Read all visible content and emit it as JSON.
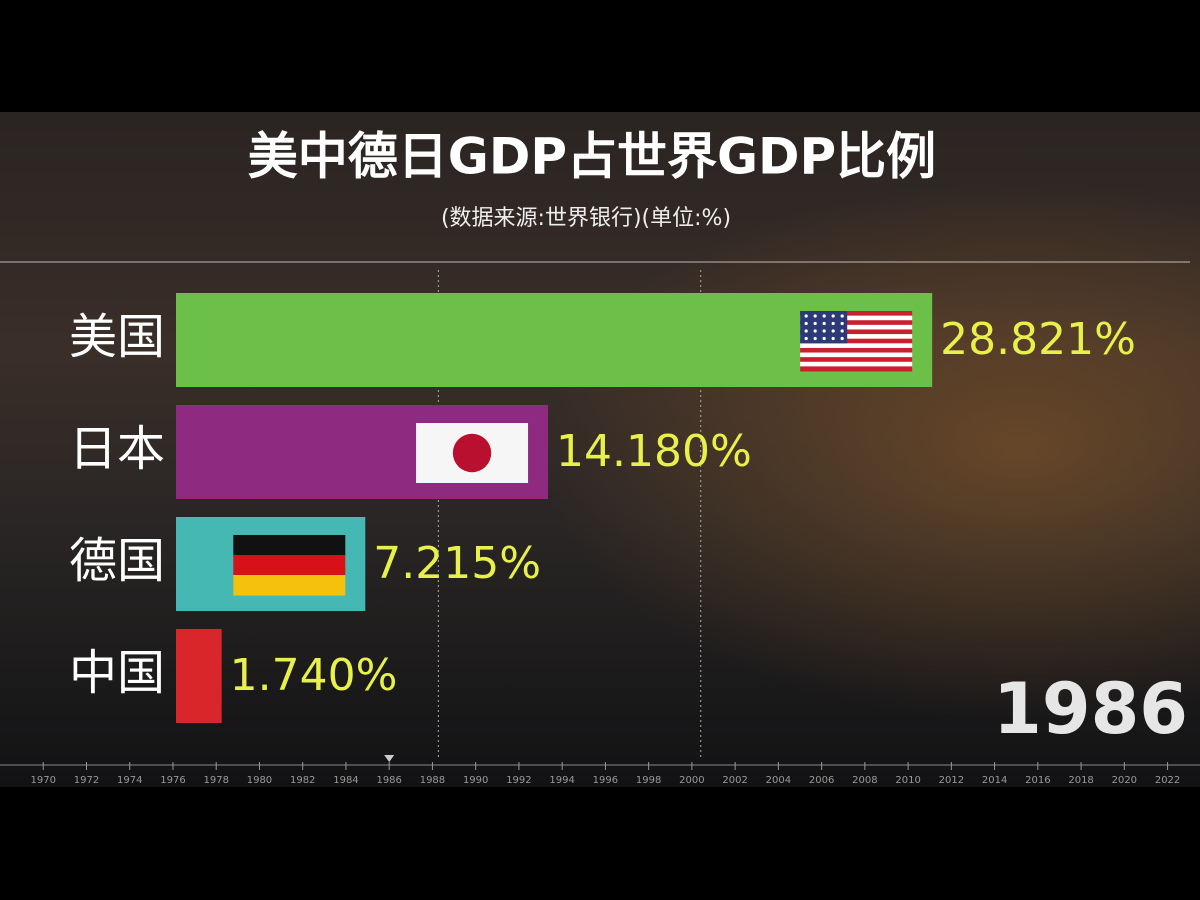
{
  "chart_data": {
    "type": "bar",
    "orientation": "horizontal",
    "title": "美中德日GDP占世界GDP比例",
    "subtitle": "(数据来源:世界银行)(单位:%)",
    "categories": [
      "美国",
      "日本",
      "德国",
      "中国"
    ],
    "values": [
      28.821,
      14.18,
      7.215,
      1.74
    ],
    "value_labels": [
      "28.821%",
      "14.180%",
      "7.215%",
      "1.740%"
    ],
    "colors": [
      "#6cc04a",
      "#8e2a7f",
      "#45b8b3",
      "#d9262b"
    ],
    "xlim": [
      0,
      38
    ],
    "xgrid": [
      10,
      20
    ],
    "year": 1986,
    "timeline": {
      "lim": [
        1968,
        2023.5
      ],
      "ticks": [
        1970,
        1972,
        1974,
        1976,
        1978,
        1980,
        1982,
        1984,
        1986,
        1988,
        1990,
        1992,
        1994,
        1996,
        1998,
        2000,
        2002,
        2004,
        2006,
        2008,
        2010,
        2012,
        2014,
        2016,
        2018,
        2020,
        2022
      ]
    }
  }
}
